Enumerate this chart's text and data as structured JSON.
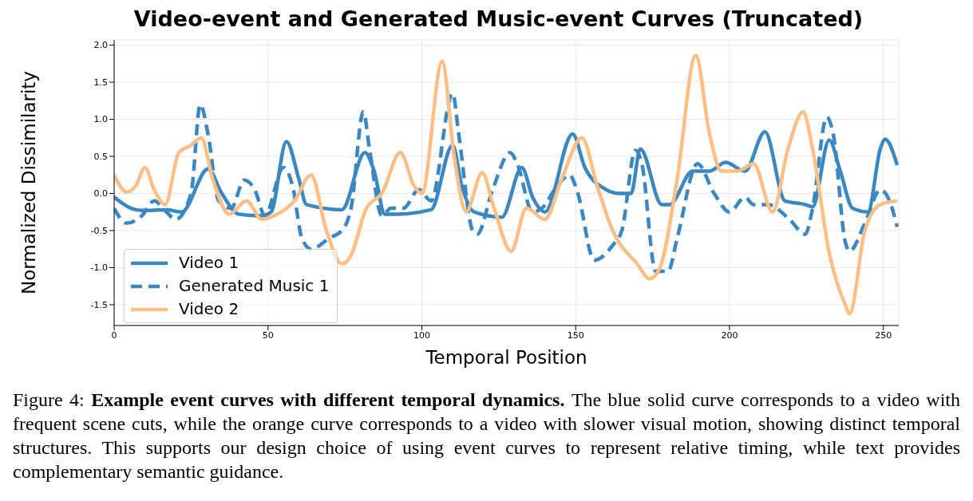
{
  "chart_data": {
    "type": "line",
    "title": "Video-event and Generated Music-event Curves (Truncated)",
    "xlabel": "Temporal Position",
    "ylabel": "Normalized Dissimilarity",
    "xlim": [
      0,
      255
    ],
    "xticks": [
      0,
      50,
      100,
      150,
      200,
      250
    ],
    "ylim": [
      -1.78,
      2.07
    ],
    "yticks": [
      -1.5,
      {
        "value": -1,
        "label": "-1.0"
      },
      -0.5,
      {
        "value": 0,
        "label": "0.0"
      },
      0.5,
      {
        "value": 1,
        "label": "1.0"
      },
      1.5,
      {
        "value": 2,
        "label": "2.0"
      }
    ],
    "grid": true,
    "legend": "bottom left",
    "marker": "none",
    "series": [
      {
        "name": "Video 1",
        "color": "#3a87c2",
        "line_style": "solid",
        "x": [
          0,
          5.5,
          9,
          17,
          22,
          30.5,
          35,
          40.5,
          48,
          51,
          56,
          60,
          62.5,
          74,
          81.5,
          84.5,
          88,
          92,
          103,
          110,
          113,
          117,
          126,
          132.5,
          136,
          140,
          149,
          153,
          160,
          164,
          168,
          171,
          178,
          180.5,
          188,
          193.5,
          198.7,
          205,
          211.5,
          218,
          224.6,
          227,
          232.4,
          236,
          240,
          245,
          249,
          250.6,
          254.5
        ],
        "values": [
          -0.05,
          -0.2,
          -0.23,
          -0.22,
          -0.25,
          0.33,
          0.0,
          -0.28,
          -0.3,
          -0.25,
          0.7,
          0.2,
          -0.15,
          -0.22,
          0.55,
          0.3,
          -0.28,
          -0.28,
          -0.22,
          0.65,
          0.1,
          -0.25,
          -0.32,
          0.35,
          -0.05,
          -0.25,
          0.8,
          0.35,
          0.05,
          0.0,
          0.0,
          0.6,
          -0.15,
          -0.15,
          0.3,
          0.3,
          0.42,
          0.3,
          0.83,
          -0.1,
          -0.15,
          -0.18,
          0.72,
          0.3,
          -0.2,
          -0.25,
          0.6,
          0.73,
          0.38
        ]
      },
      {
        "name": "Generated Music 1",
        "color": "#3a87c2",
        "line_style": "dashed",
        "x": [
          0,
          4,
          9,
          13,
          17,
          20,
          25,
          28,
          30.5,
          34,
          38,
          42.3,
          45.7,
          49,
          55,
          58,
          61,
          64,
          70,
          74,
          77,
          81,
          83,
          87,
          90,
          94,
          99,
          103,
          110,
          112,
          116.5,
          118,
          123,
          128.7,
          131,
          136,
          139,
          144,
          148,
          150.7,
          156,
          162,
          165,
          169.4,
          171.5,
          176,
          180,
          183,
          189.6,
          195,
          200,
          205,
          207.8,
          212.5,
          219.5,
          224.6,
          227,
          231.6,
          233.7,
          237.6,
          239,
          244,
          249,
          252,
          254.5
        ],
        "values": [
          -0.2,
          -0.4,
          -0.3,
          -0.1,
          -0.25,
          -0.35,
          0.0,
          1.2,
          0.8,
          -0.1,
          -0.2,
          0.18,
          0.05,
          -0.3,
          0.35,
          0.1,
          -0.6,
          -0.75,
          -0.6,
          -0.5,
          -0.2,
          1.1,
          0.6,
          -0.3,
          -0.2,
          -0.2,
          0.05,
          -0.1,
          1.35,
          0.8,
          -0.5,
          -0.55,
          0.05,
          0.55,
          0.4,
          -0.25,
          -0.2,
          0.1,
          0.25,
          0.0,
          -0.9,
          -0.7,
          -0.5,
          0.58,
          0.4,
          -1.05,
          -1.05,
          -0.6,
          0.4,
          0.0,
          -0.25,
          -0.05,
          -0.15,
          -0.15,
          -0.35,
          -0.55,
          -0.2,
          1.03,
          0.8,
          -0.65,
          -0.78,
          -0.4,
          0.05,
          -0.1,
          -0.45
        ]
      },
      {
        "name": "Video 2",
        "color": "#fdbf86",
        "line_style": "solid",
        "x": [
          0,
          4,
          7,
          10,
          13,
          16.6,
          21,
          25,
          28.3,
          32,
          37.4,
          43,
          48,
          52,
          58.6,
          64,
          69,
          74,
          76.8,
          82,
          87,
          93,
          97.5,
          100,
          106.6,
          110.5,
          114.4,
          119.6,
          123.5,
          129,
          134,
          140,
          145.5,
          152,
          157,
          162,
          170,
          174,
          177.4,
          183,
          189,
          193.5,
          197.4,
          202.6,
          207.8,
          214,
          219,
          223.9,
          227,
          232.4,
          237.6,
          239,
          244,
          249,
          254.5
        ],
        "values": [
          0.25,
          0.02,
          0.1,
          0.35,
          0.05,
          -0.15,
          0.55,
          0.65,
          0.75,
          0.2,
          -0.28,
          -0.1,
          -0.35,
          -0.3,
          -0.1,
          0.25,
          -0.5,
          -0.95,
          -0.85,
          -0.2,
          0.0,
          0.55,
          0.1,
          0.0,
          1.78,
          0.5,
          -0.25,
          0.28,
          -0.2,
          -0.78,
          -0.2,
          -0.35,
          0.2,
          0.75,
          0.1,
          -0.5,
          -0.95,
          -1.15,
          -1.0,
          0.2,
          1.86,
          0.8,
          0.3,
          0.3,
          0.4,
          -0.25,
          0.6,
          1.1,
          0.6,
          -0.8,
          -1.5,
          -1.62,
          -0.5,
          -0.15,
          -0.1
        ]
      }
    ],
    "annotations": [
      "Figure 4:",
      "Example event curves with different temporal dynamics.",
      "The blue solid curve corresponds to a video with frequent scene cuts, while the orange curve corresponds to a video with slower visual motion, showing distinct temporal structures. This supports our design choice of using event curves to represent relative timing, while text provides complementary semantic guidance."
    ]
  }
}
